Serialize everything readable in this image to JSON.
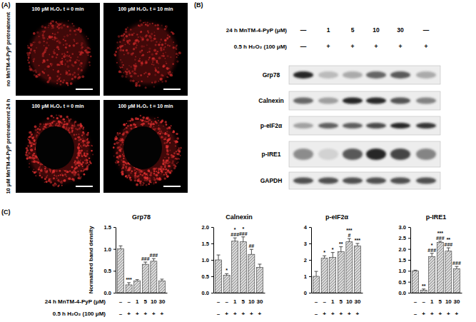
{
  "panel_a": {
    "label": "(A)",
    "row_labels": [
      "no MnTM-4-PyP pretreatment",
      "10 μM MnTM-4-PyP pretreatment 24 h"
    ],
    "image_labels": [
      [
        "100 μM H₂O₂ t = 0 min",
        "100 μM H₂O₂ t = 10 min"
      ],
      [
        "100 μM H₂O₂ t = 0 min",
        "100 μM H₂O₂ t = 10 min"
      ]
    ]
  },
  "panel_b": {
    "label": "(B)",
    "treatments": [
      {
        "label": "24 h MnTM-4-PyP (μM)",
        "lanes": [
          "—",
          "1",
          "5",
          "10",
          "30",
          "—"
        ]
      },
      {
        "label": "0.5 h H₂O₂ (100 μM)",
        "lanes": [
          "—",
          "+",
          "+",
          "+",
          "+",
          "+"
        ]
      }
    ],
    "rows": [
      "Grp78",
      "Calnexin",
      "p-eIF2α",
      "p-IRE1",
      "GAPDH"
    ]
  },
  "panel_c": {
    "label": "(C)",
    "ylabel": "Normalized band density",
    "row_labels": [
      "24 h MnTM-4-PyP (μM)",
      "0.5 h H₂O₂ (100 μM)"
    ]
  },
  "chart_data": [
    {
      "type": "bar",
      "title": "Grp78",
      "categories": [
        [
          "–",
          "–"
        ],
        [
          "–",
          "+"
        ],
        [
          "1",
          "+"
        ],
        [
          "5",
          "+"
        ],
        [
          "10",
          "+"
        ],
        [
          "30",
          "+"
        ]
      ],
      "values": [
        1.0,
        0.18,
        0.27,
        0.65,
        0.72,
        0.27
      ],
      "errors": [
        0.07,
        0.05,
        0.03,
        0.05,
        0.06,
        0.04
      ],
      "annotations": [
        null,
        [
          "***"
        ],
        null,
        [
          "###"
        ],
        [
          "###"
        ],
        null
      ],
      "color": "#d9d9d9",
      "ylim": [
        0,
        1.5
      ],
      "yticks": [
        {
          "value": 0,
          "label": "0.0"
        },
        0.5,
        {
          "value": 1,
          "label": "1.0"
        },
        1.5
      ],
      "grid": false
    },
    {
      "type": "bar",
      "title": "Calnexin",
      "categories": [
        [
          "–",
          "–"
        ],
        [
          "–",
          "+"
        ],
        [
          "1",
          "+"
        ],
        [
          "5",
          "+"
        ],
        [
          "10",
          "+"
        ],
        [
          "30",
          "+"
        ]
      ],
      "values": [
        1.0,
        0.53,
        1.57,
        1.55,
        1.17,
        0.77
      ],
      "errors": [
        0.15,
        0.05,
        0.1,
        0.15,
        0.15,
        0.1
      ],
      "annotations": [
        null,
        [
          "*"
        ],
        [
          "*",
          "###"
        ],
        [
          "*",
          "###"
        ],
        [
          "##"
        ],
        null
      ],
      "color": "#d9d9d9",
      "ylim": [
        0,
        2
      ],
      "yticks": [
        {
          "value": 0,
          "label": "0.0"
        },
        0.5,
        {
          "value": 1,
          "label": "1.0"
        },
        1.5,
        {
          "value": 2,
          "label": "2.0"
        }
      ],
      "grid": false
    },
    {
      "type": "bar",
      "title": "p-eIF2α",
      "categories": [
        [
          "–",
          "–"
        ],
        [
          "–",
          "+"
        ],
        [
          "1",
          "+"
        ],
        [
          "5",
          "+"
        ],
        [
          "10",
          "+"
        ],
        [
          "30",
          "+"
        ]
      ],
      "values": [
        1.0,
        2.1,
        2.15,
        2.5,
        3.1,
        2.85
      ],
      "errors": [
        0.3,
        0.15,
        0.3,
        0.3,
        0.2,
        0.15
      ],
      "annotations": [
        null,
        [
          "*"
        ],
        [
          "*"
        ],
        [
          "**"
        ],
        [
          "***",
          "#"
        ],
        [
          "***"
        ]
      ],
      "color": "#d9d9d9",
      "ylim": [
        0,
        4
      ],
      "yticks": [
        0,
        1,
        2,
        3,
        4
      ],
      "grid": false
    },
    {
      "type": "bar",
      "title": "p-IRE1",
      "categories": [
        [
          "–",
          "–"
        ],
        [
          "–",
          "+"
        ],
        [
          "1",
          "+"
        ],
        [
          "5",
          "+"
        ],
        [
          "10",
          "+"
        ],
        [
          "30",
          "+"
        ]
      ],
      "values": [
        1.0,
        0.12,
        1.65,
        2.3,
        1.9,
        1.1
      ],
      "errors": [
        0.03,
        0.05,
        0.15,
        0.05,
        0.15,
        0.1
      ],
      "annotations": [
        null,
        [
          "**"
        ],
        [
          "*",
          "###"
        ],
        [
          "***",
          "###"
        ],
        [
          "**",
          "###"
        ],
        [
          "###"
        ]
      ],
      "color": "#d9d9d9",
      "ylim": [
        0,
        3
      ],
      "yticks": [
        {
          "value": 0,
          "label": "0.0"
        },
        0.5,
        {
          "value": 1,
          "label": "1.0"
        },
        1.5,
        {
          "value": 2,
          "label": "2.0"
        },
        2.5,
        {
          "value": 3,
          "label": "3.0"
        }
      ],
      "grid": false
    }
  ]
}
